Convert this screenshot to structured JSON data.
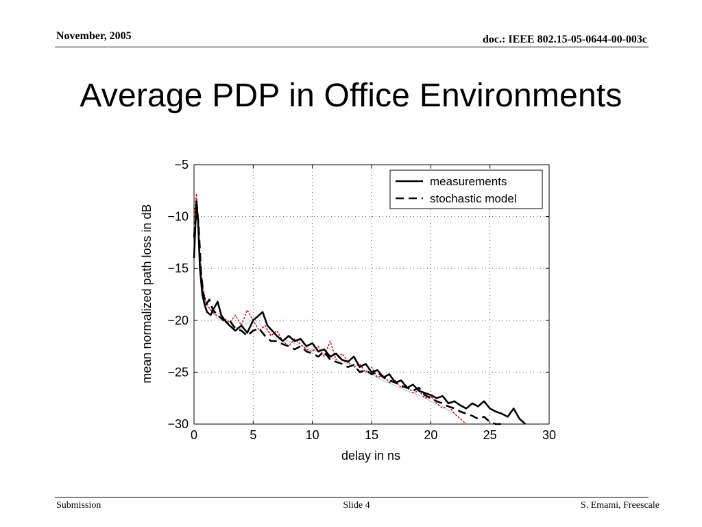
{
  "header": {
    "date": "November, 2005",
    "doc_id": "doc.: IEEE 802.15-05-0644-00-003c"
  },
  "slide": {
    "title": "Average PDP in Office Environments"
  },
  "footer": {
    "left": "Submission",
    "center": "Slide 4",
    "right": "S. Emami, Freescale"
  },
  "chart_data": {
    "type": "line",
    "title": "",
    "xlabel": "delay in ns",
    "ylabel": "mean normalized path loss in dB",
    "xlim": [
      0,
      30
    ],
    "ylim": [
      -30,
      -5
    ],
    "xticks": [
      0,
      5,
      10,
      15,
      20,
      25,
      30
    ],
    "yticks": [
      -30,
      -25,
      -20,
      -15,
      -10,
      -5
    ],
    "grid": true,
    "legend_position": "top-right",
    "legend": [
      "measurements",
      "stochastic model"
    ],
    "series": [
      {
        "name": "measurements",
        "style": "solid",
        "color": "#000000",
        "x": [
          0,
          0.2,
          0.35,
          0.5,
          0.7,
          0.9,
          1.1,
          1.4,
          1.7,
          2.0,
          2.3,
          2.6,
          3.0,
          3.5,
          4.0,
          4.5,
          5.0,
          5.5,
          5.8,
          6.2,
          6.6,
          7.0,
          7.5,
          8.0,
          8.5,
          9.0,
          9.5,
          10.0,
          10.5,
          11.0,
          11.5,
          12.0,
          12.5,
          13.0,
          13.5,
          14.0,
          14.5,
          15.0,
          15.5,
          16.0,
          16.5,
          17.0,
          17.5,
          18.0,
          18.5,
          19.0,
          19.5,
          20.0,
          20.5,
          21.0,
          21.5,
          22.0,
          22.5,
          23.0,
          23.5,
          24.0,
          24.5,
          25.0,
          25.5,
          26.0,
          26.5,
          27.0,
          27.5,
          28.0
        ],
        "y": [
          -14,
          -8.5,
          -10.5,
          -15,
          -17.5,
          -18.5,
          -19.2,
          -19.5,
          -18.8,
          -18.2,
          -19.5,
          -20.0,
          -20.5,
          -21.0,
          -20.5,
          -21.2,
          -20.0,
          -19.5,
          -19.2,
          -20.5,
          -21.0,
          -21.5,
          -22.0,
          -21.5,
          -22.0,
          -21.8,
          -22.5,
          -22.2,
          -23.0,
          -22.8,
          -23.5,
          -23.2,
          -23.8,
          -24.0,
          -23.5,
          -24.5,
          -24.2,
          -25.0,
          -24.8,
          -25.5,
          -25.2,
          -26.0,
          -25.8,
          -26.5,
          -26.2,
          -26.8,
          -27.0,
          -27.2,
          -27.5,
          -27.3,
          -28.0,
          -27.8,
          -28.2,
          -28.5,
          -28.0,
          -28.3,
          -27.8,
          -28.5,
          -28.8,
          -29.0,
          -29.3,
          -28.5,
          -29.5,
          -30.0
        ]
      },
      {
        "name": "stochastic model",
        "style": "dashed",
        "color": "#000000",
        "x": [
          0,
          0.25,
          0.4,
          0.6,
          0.8,
          1.0,
          1.3,
          1.6,
          2.0,
          2.5,
          3.0,
          3.5,
          4.0,
          4.5,
          5.0,
          5.5,
          6.0,
          6.5,
          7.0,
          7.5,
          8.0,
          8.5,
          9.0,
          9.5,
          10.0,
          10.5,
          11.0,
          11.5,
          12.0,
          12.5,
          13.0,
          13.5,
          14.0,
          14.5,
          15.0,
          15.5,
          16.0,
          16.5,
          17.0,
          17.5,
          18.0,
          18.5,
          19.0,
          19.5,
          20.0,
          20.5,
          21.0,
          21.5,
          22.0,
          22.5,
          23.0,
          23.5,
          24.0,
          24.5,
          25.0,
          25.5,
          26.0
        ],
        "y": [
          -12,
          -9,
          -11,
          -15.5,
          -17.5,
          -18.5,
          -18.0,
          -19.0,
          -19.5,
          -20.0,
          -20.0,
          -20.8,
          -21.0,
          -21.5,
          -21.0,
          -20.8,
          -21.5,
          -22.0,
          -22.0,
          -22.3,
          -22.5,
          -22.8,
          -22.5,
          -23.0,
          -23.2,
          -23.5,
          -23.0,
          -23.8,
          -24.0,
          -24.2,
          -24.5,
          -24.3,
          -25.0,
          -24.8,
          -25.2,
          -25.0,
          -25.5,
          -25.8,
          -26.0,
          -26.3,
          -26.5,
          -26.8,
          -26.5,
          -27.2,
          -27.5,
          -27.8,
          -28.0,
          -28.3,
          -28.5,
          -28.8,
          -29.0,
          -29.2,
          -29.5,
          -29.3,
          -29.8,
          -30.0,
          -30.0
        ]
      },
      {
        "name": "",
        "style": "dotted",
        "color": "#cc0000",
        "x": [
          0,
          0.2,
          0.3,
          0.5,
          0.7,
          1.0,
          1.3,
          1.6,
          2.0,
          2.5,
          3.0,
          3.5,
          4.0,
          4.5,
          5.0,
          5.5,
          6.0,
          6.5,
          7.0,
          7.5,
          8.0,
          8.5,
          9.0,
          9.5,
          10.0,
          10.5,
          11.0,
          11.5,
          12.0,
          12.5,
          13.0,
          13.5,
          14.0,
          14.5,
          15.0,
          15.5,
          16.0,
          16.5,
          17.0,
          17.5,
          18.0,
          18.5,
          19.0,
          19.5,
          20.0,
          20.5,
          21.0,
          21.5,
          22.0,
          22.5,
          23.0
        ],
        "y": [
          -10,
          -7.8,
          -9.5,
          -13.5,
          -16.5,
          -18.2,
          -18.8,
          -19.2,
          -19.6,
          -19.8,
          -20.2,
          -19.5,
          -20.5,
          -19.0,
          -20.0,
          -21.0,
          -20.5,
          -21.5,
          -21.0,
          -22.0,
          -22.5,
          -21.8,
          -22.3,
          -22.8,
          -23.0,
          -22.5,
          -23.5,
          -22.0,
          -23.8,
          -23.2,
          -24.0,
          -24.5,
          -24.2,
          -25.0,
          -24.5,
          -25.5,
          -25.3,
          -26.0,
          -25.8,
          -26.5,
          -26.3,
          -27.0,
          -26.8,
          -27.5,
          -27.3,
          -28.0,
          -28.5,
          -28.2,
          -29.0,
          -29.5,
          -30.0
        ]
      },
      {
        "name": "",
        "style": "thin",
        "color": "#a8aee8",
        "x": [
          0,
          0.3,
          0.6,
          1.0,
          1.5,
          2.0,
          3.0,
          4.0,
          5.0,
          6.0,
          7.0,
          8.0,
          9.0,
          10.0,
          11.0,
          12.0,
          13.0,
          14.0,
          15.0,
          16.0,
          17.0,
          18.0,
          19.0,
          20.0,
          21.0,
          22.0
        ],
        "y": [
          -11,
          -8.5,
          -16,
          -18.5,
          -19.2,
          -19.8,
          -20.5,
          -20.8,
          -19.8,
          -20.8,
          -21.8,
          -22.0,
          -22.5,
          -22.8,
          -23.3,
          -23.8,
          -24.2,
          -24.8,
          -25.2,
          -25.8,
          -26.3,
          -26.8,
          -27.2,
          -27.8,
          -28.3,
          -29.0
        ]
      }
    ]
  }
}
